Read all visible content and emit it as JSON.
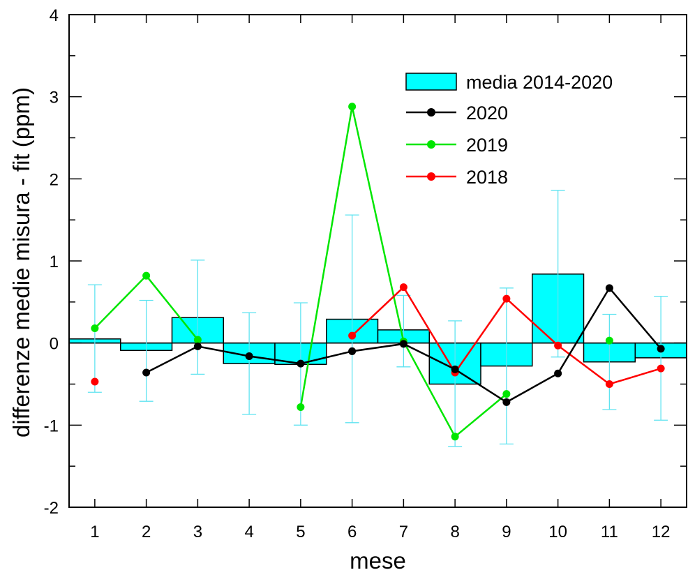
{
  "chart_data": {
    "type": "bar",
    "xlabel": "mese",
    "ylabel": "differenze medie misura - fit (ppm)",
    "xlim": [
      0.5,
      12.5
    ],
    "ylim": [
      -2,
      4
    ],
    "grid": false,
    "legend_position": "top-right",
    "categories": [
      "1",
      "2",
      "3",
      "4",
      "5",
      "6",
      "7",
      "8",
      "9",
      "10",
      "11",
      "12"
    ],
    "x_ticks": [
      1,
      2,
      3,
      4,
      5,
      6,
      7,
      8,
      9,
      10,
      11,
      12
    ],
    "y_ticks": [
      -2,
      -1,
      0,
      1,
      2,
      3,
      4
    ],
    "y_tick_labels": [
      "-2",
      "-1",
      "0",
      "1",
      "2",
      "3",
      "4"
    ],
    "bars": {
      "name": "media 2014-2020",
      "color": "#00ffff",
      "values": [
        0.05,
        -0.09,
        0.31,
        -0.25,
        -0.26,
        0.29,
        0.16,
        -0.5,
        -0.28,
        0.84,
        -0.23,
        -0.18
      ],
      "err_low": [
        -0.6,
        -0.71,
        -0.38,
        -0.87,
        -1.0,
        -0.97,
        -0.29,
        -1.26,
        -1.23,
        -0.17,
        -0.81,
        -0.94
      ],
      "err_high": [
        0.71,
        0.52,
        1.01,
        0.37,
        0.49,
        1.56,
        0.58,
        0.27,
        0.67,
        1.86,
        0.35,
        0.57
      ],
      "error_color": "#5fe3f0"
    },
    "series": [
      {
        "name": "2020",
        "color": "#000000",
        "x": [
          2,
          3,
          4,
          5,
          6,
          7,
          8,
          9,
          10,
          11,
          12
        ],
        "values": [
          -0.36,
          -0.04,
          -0.16,
          -0.25,
          -0.1,
          -0.01,
          -0.32,
          -0.72,
          -0.37,
          0.67,
          -0.07
        ]
      },
      {
        "name": "2019",
        "color": "#00e600",
        "x": [
          1,
          2,
          3,
          5,
          6,
          7,
          8,
          9,
          11
        ],
        "values": [
          0.18,
          0.82,
          0.04,
          -0.78,
          2.88,
          0.02,
          -1.14,
          -0.62,
          0.03
        ],
        "segments": [
          [
            1,
            2,
            3
          ],
          [
            5,
            6,
            7,
            8,
            9
          ],
          [
            11
          ]
        ]
      },
      {
        "name": "2018",
        "color": "#ff0000",
        "x": [
          1,
          6,
          7,
          8,
          9,
          10,
          11,
          12
        ],
        "values": [
          -0.47,
          0.09,
          0.68,
          -0.36,
          0.54,
          -0.03,
          -0.5,
          -0.31
        ],
        "segments": [
          [
            1
          ],
          [
            6,
            7,
            8,
            9,
            10,
            11,
            12
          ]
        ]
      }
    ]
  }
}
